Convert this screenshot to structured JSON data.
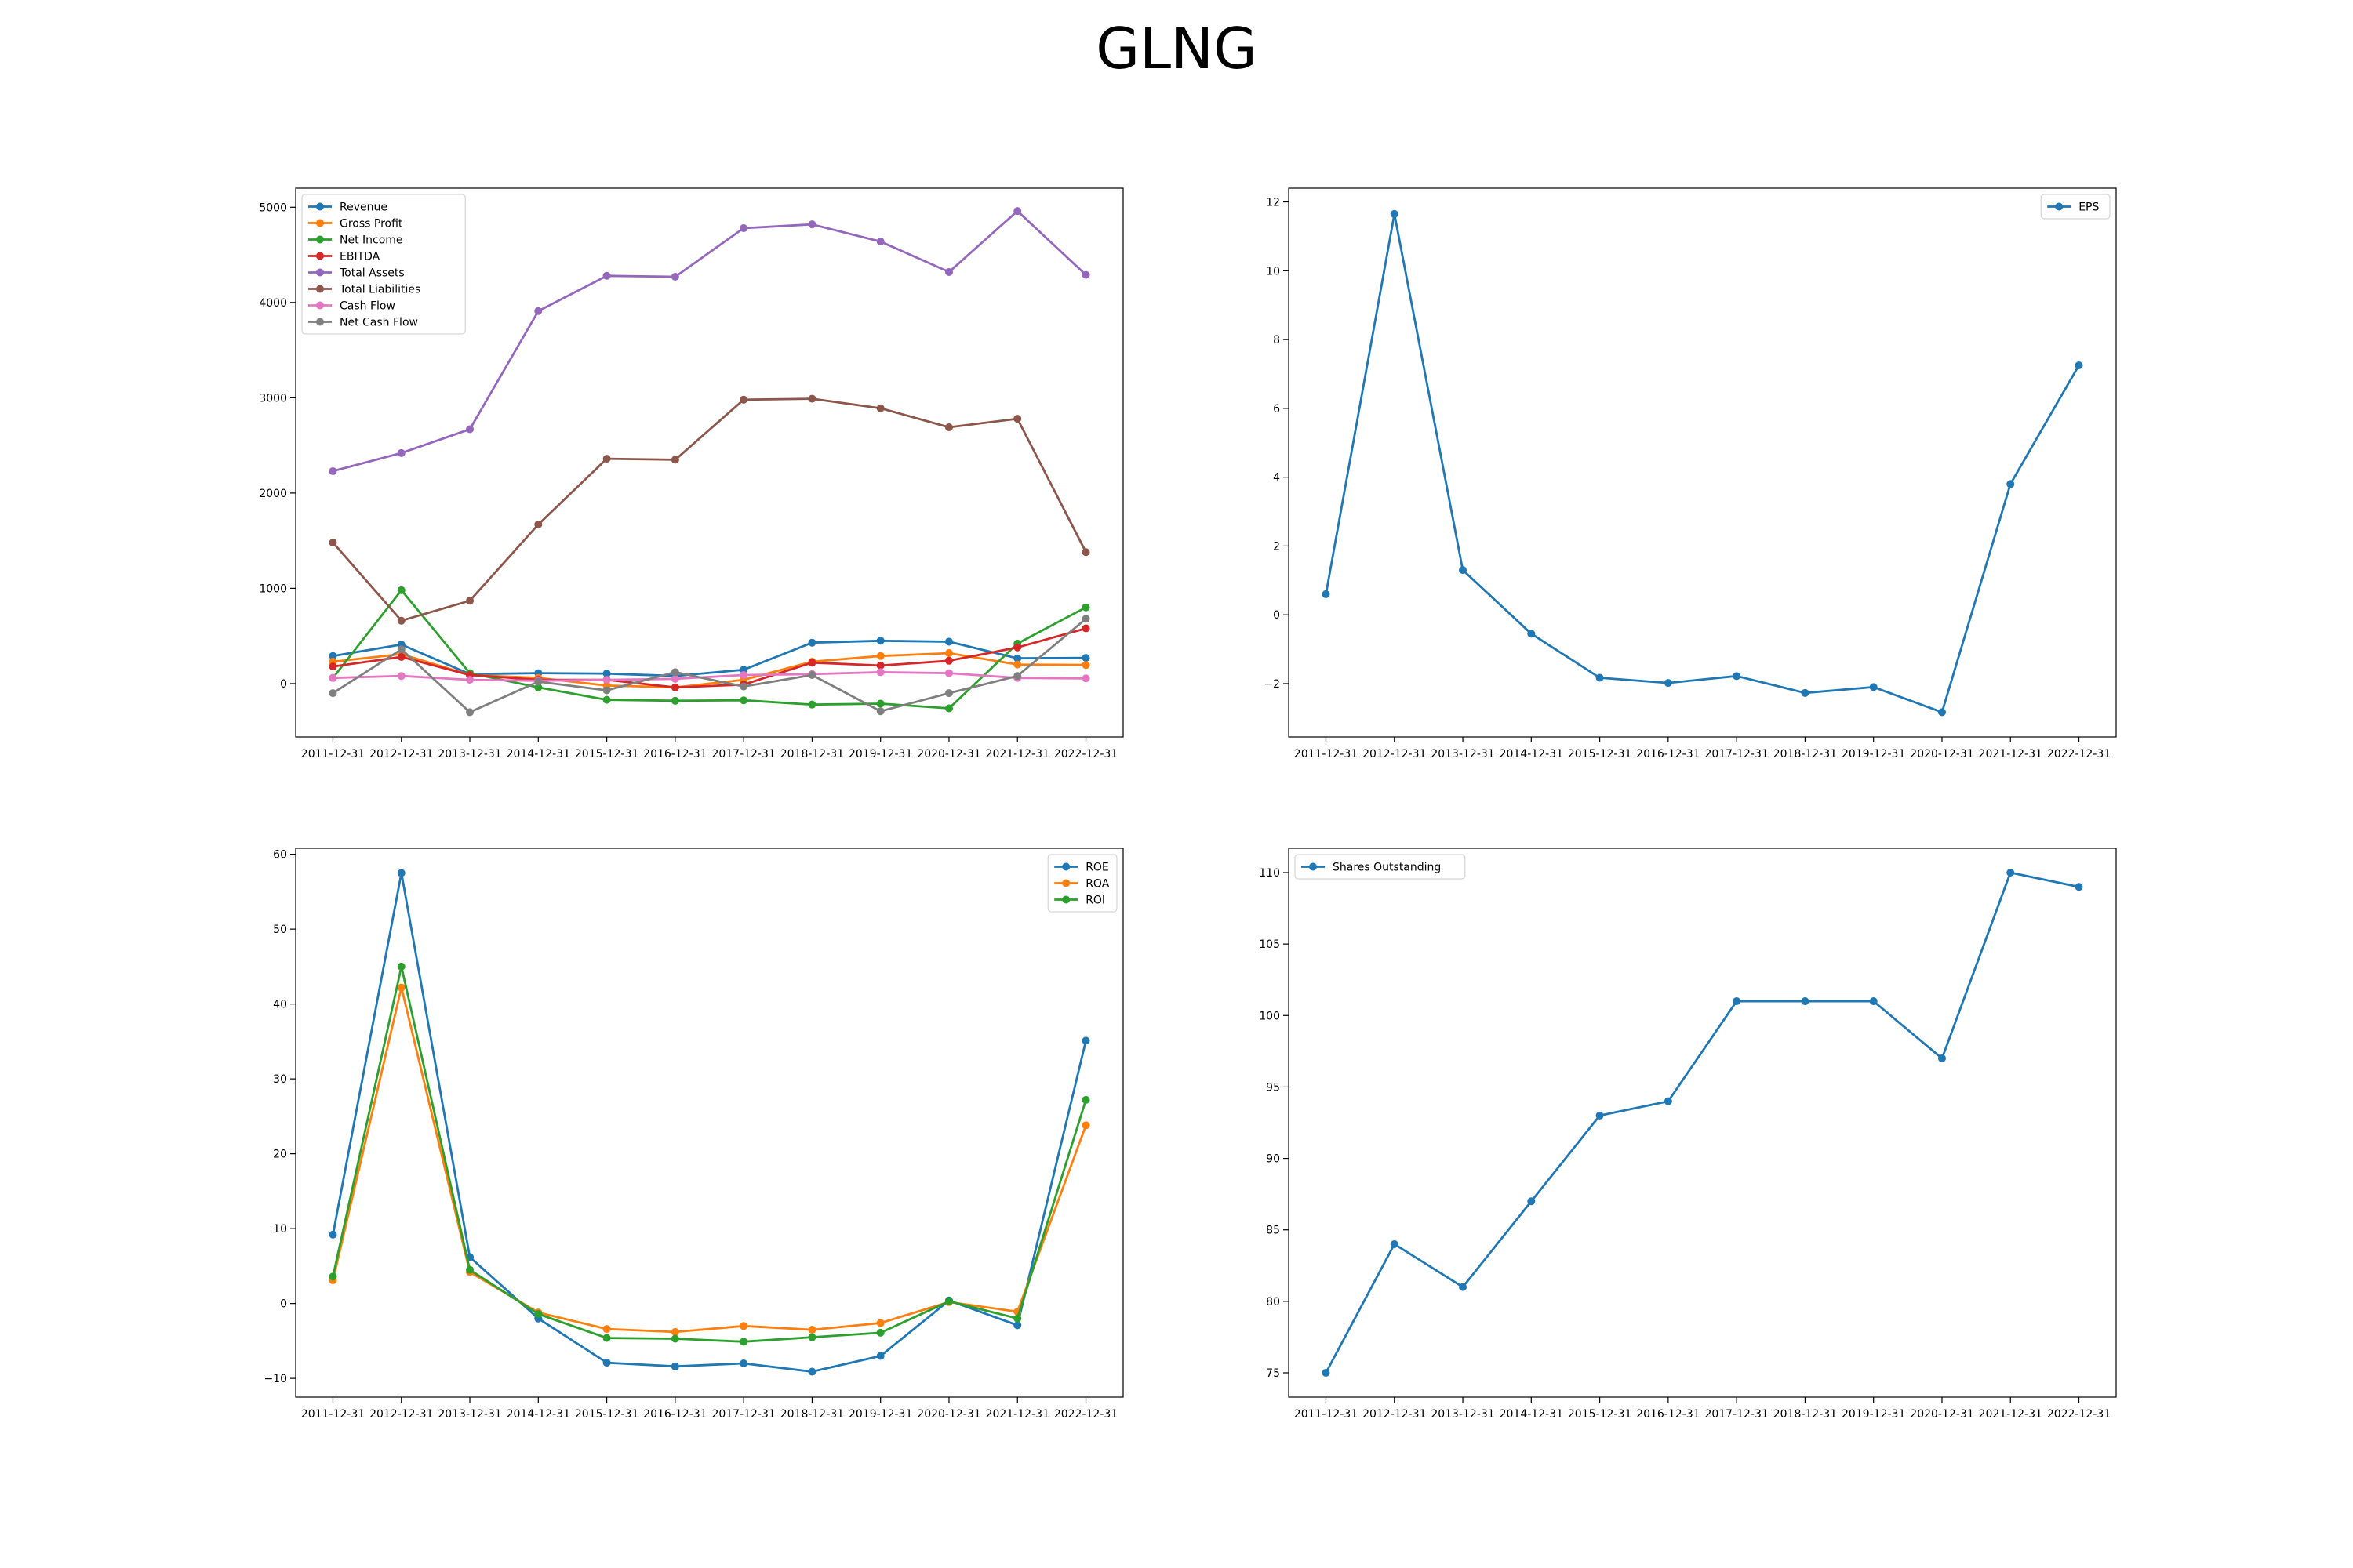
{
  "title": "GLNG",
  "chart_data": [
    {
      "type": "line",
      "legend_position": "upper-left",
      "grid": false,
      "x": [
        "2011-12-31",
        "2012-12-31",
        "2013-12-31",
        "2014-12-31",
        "2015-12-31",
        "2016-12-31",
        "2017-12-31",
        "2018-12-31",
        "2019-12-31",
        "2020-12-31",
        "2021-12-31",
        "2022-12-31"
      ],
      "ylim": [
        -560,
        5200
      ],
      "yticks": [
        0,
        1000,
        2000,
        3000,
        4000,
        5000
      ],
      "series": [
        {
          "name": "Revenue",
          "color": "#1f77b4",
          "values": [
            290,
            410,
            100,
            110,
            105,
            80,
            145,
            430,
            450,
            440,
            265,
            270
          ]
        },
        {
          "name": "Gross Profit",
          "color": "#ff7f0e",
          "values": [
            230,
            310,
            90,
            60,
            -20,
            -40,
            40,
            230,
            290,
            320,
            200,
            195
          ]
        },
        {
          "name": "Net Income",
          "color": "#2ca02c",
          "values": [
            60,
            980,
            110,
            -40,
            -170,
            -180,
            -175,
            -220,
            -210,
            -260,
            420,
            800
          ]
        },
        {
          "name": "EBITDA",
          "color": "#d62728",
          "values": [
            180,
            280,
            90,
            40,
            40,
            -40,
            -10,
            220,
            190,
            240,
            380,
            580
          ]
        },
        {
          "name": "Total Assets",
          "color": "#9467bd",
          "values": [
            2230,
            2420,
            2670,
            3910,
            4280,
            4270,
            4780,
            4820,
            4640,
            4320,
            4960,
            4290
          ]
        },
        {
          "name": "Total Liabilities",
          "color": "#8c564b",
          "values": [
            1480,
            660,
            870,
            1670,
            2360,
            2350,
            2980,
            2990,
            2890,
            2690,
            2780,
            1380
          ]
        },
        {
          "name": "Cash Flow",
          "color": "#e377c2",
          "values": [
            60,
            80,
            40,
            30,
            40,
            50,
            90,
            100,
            120,
            110,
            60,
            55
          ]
        },
        {
          "name": "Net Cash Flow",
          "color": "#7f7f7f",
          "values": [
            -100,
            360,
            -300,
            20,
            -70,
            120,
            -30,
            90,
            -290,
            -100,
            80,
            680
          ]
        }
      ]
    },
    {
      "type": "line",
      "legend_position": "upper-right",
      "grid": false,
      "x": [
        "2011-12-31",
        "2012-12-31",
        "2013-12-31",
        "2014-12-31",
        "2015-12-31",
        "2016-12-31",
        "2017-12-31",
        "2018-12-31",
        "2019-12-31",
        "2020-12-31",
        "2021-12-31",
        "2022-12-31"
      ],
      "ylim": [
        -3.55,
        12.4
      ],
      "yticks": [
        -2,
        0,
        2,
        4,
        6,
        8,
        10,
        12
      ],
      "series": [
        {
          "name": "EPS",
          "color": "#1f77b4",
          "values": [
            0.6,
            11.65,
            1.3,
            -0.55,
            -1.83,
            -1.98,
            -1.78,
            -2.27,
            -2.1,
            -2.83,
            3.8,
            7.25
          ]
        }
      ]
    },
    {
      "type": "line",
      "legend_position": "upper-right",
      "grid": false,
      "x": [
        "2011-12-31",
        "2012-12-31",
        "2013-12-31",
        "2014-12-31",
        "2015-12-31",
        "2016-12-31",
        "2017-12-31",
        "2018-12-31",
        "2019-12-31",
        "2020-12-31",
        "2021-12-31",
        "2022-12-31"
      ],
      "ylim": [
        -12.5,
        60.8
      ],
      "yticks": [
        -10,
        0,
        10,
        20,
        30,
        40,
        50,
        60
      ],
      "series": [
        {
          "name": "ROE",
          "color": "#1f77b4",
          "values": [
            9.2,
            57.5,
            6.2,
            -2.0,
            -7.9,
            -8.4,
            -8.0,
            -9.1,
            -7.0,
            0.4,
            -2.9,
            35.1
          ]
        },
        {
          "name": "ROA",
          "color": "#ff7f0e",
          "values": [
            3.1,
            42.2,
            4.2,
            -1.2,
            -3.4,
            -3.8,
            -3.0,
            -3.5,
            -2.6,
            0.2,
            -1.1,
            23.8
          ]
        },
        {
          "name": "ROI",
          "color": "#2ca02c",
          "values": [
            3.6,
            45.0,
            4.5,
            -1.4,
            -4.6,
            -4.7,
            -5.1,
            -4.5,
            -3.9,
            0.3,
            -2.0,
            27.2
          ]
        }
      ]
    },
    {
      "type": "line",
      "legend_position": "upper-left",
      "grid": false,
      "x": [
        "2011-12-31",
        "2012-12-31",
        "2013-12-31",
        "2014-12-31",
        "2015-12-31",
        "2016-12-31",
        "2017-12-31",
        "2018-12-31",
        "2019-12-31",
        "2020-12-31",
        "2021-12-31",
        "2022-12-31"
      ],
      "ylim": [
        73.3,
        111.7
      ],
      "yticks": [
        75,
        80,
        85,
        90,
        95,
        100,
        105,
        110
      ],
      "series": [
        {
          "name": "Shares Outstanding",
          "color": "#1f77b4",
          "values": [
            75,
            84,
            81,
            87,
            93,
            94,
            101,
            101,
            101,
            97,
            110,
            109
          ]
        }
      ]
    }
  ]
}
